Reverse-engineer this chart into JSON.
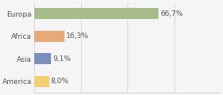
{
  "categories": [
    "Europa",
    "Africa",
    "Asia",
    "America"
  ],
  "values": [
    66.7,
    16.3,
    9.1,
    8.0
  ],
  "labels": [
    "66,7%",
    "16,3%",
    "9,1%",
    "8,0%"
  ],
  "bar_colors": [
    "#a8bc8a",
    "#e8a97a",
    "#7a8fbf",
    "#f0d070"
  ],
  "background_color": "#f5f5f5",
  "xlim": [
    0,
    100
  ],
  "bar_height": 0.5,
  "label_fontsize": 6.5,
  "category_fontsize": 6.5,
  "grid_ticks": [
    0,
    25,
    50,
    75,
    100
  ]
}
